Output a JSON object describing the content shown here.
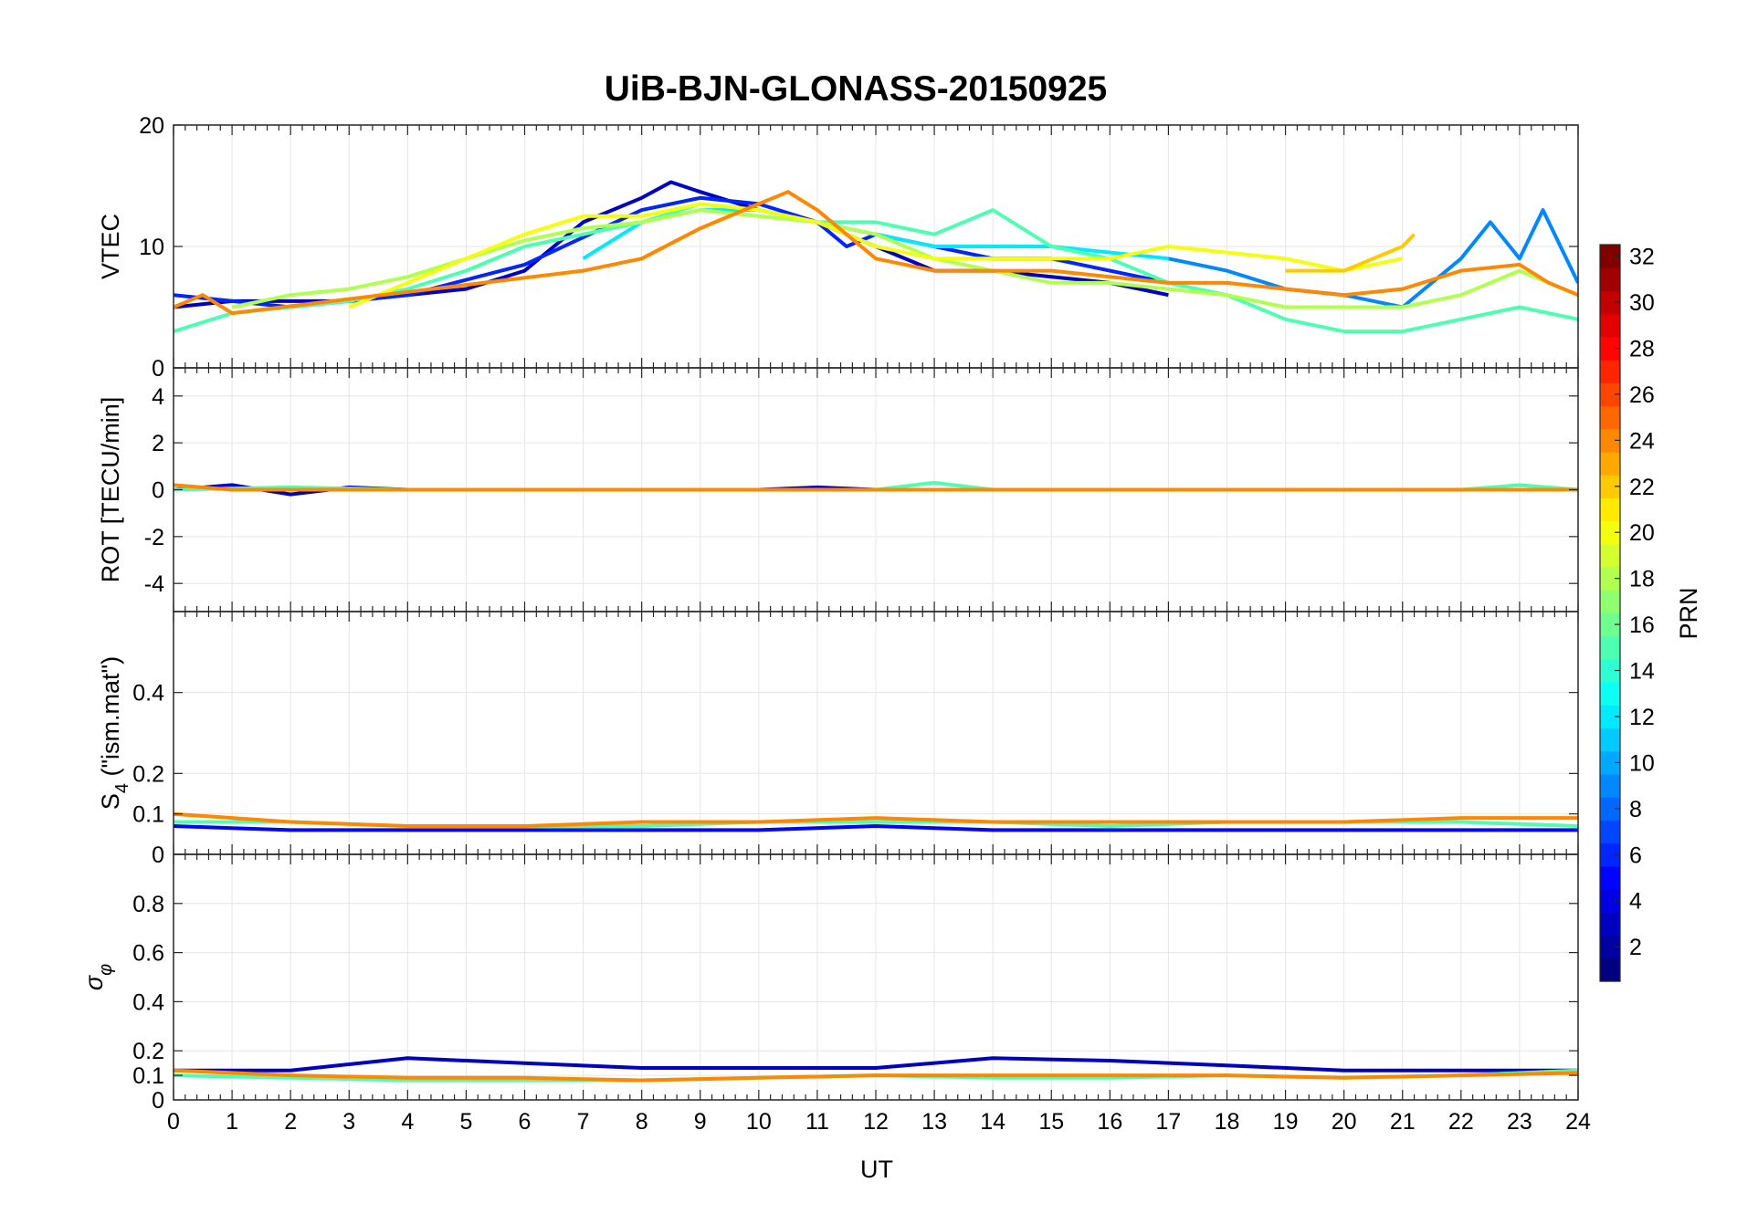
{
  "title": "UiB-BJN-GLONASS-20150925",
  "chart_data": {
    "type": "line",
    "title": "UiB-BJN-GLONASS-20150925",
    "xlabel": "UT",
    "xlim": [
      0,
      24
    ],
    "xticks": [
      0,
      1,
      2,
      3,
      4,
      5,
      6,
      7,
      8,
      9,
      10,
      11,
      12,
      13,
      14,
      15,
      16,
      17,
      18,
      19,
      20,
      21,
      22,
      23,
      24
    ],
    "grid": true,
    "colormap": "jet",
    "colorbar": {
      "label": "PRN",
      "range": [
        1,
        32
      ],
      "ticks": [
        2,
        4,
        6,
        8,
        10,
        12,
        14,
        16,
        18,
        20,
        22,
        24,
        26,
        28,
        30,
        32
      ],
      "placement": "right"
    },
    "panels": [
      {
        "id": "vtec",
        "ylabel": "VTEC",
        "ylim": [
          0,
          20
        ],
        "yticks": [
          0,
          10,
          20
        ],
        "series": [
          {
            "prn": 3,
            "x": [
              0,
              1,
              2,
              3,
              4,
              5,
              6,
              7,
              8,
              8.5,
              9,
              10,
              11,
              12,
              13,
              14,
              15,
              16,
              17
            ],
            "values": [
              5,
              5.5,
              5.5,
              5.5,
              6,
              6.5,
              8,
              12,
              14,
              15.3,
              14.5,
              13,
              12,
              10,
              8,
              8,
              7.5,
              7,
              6
            ]
          },
          {
            "prn": 6,
            "x": [
              0,
              2,
              4,
              6,
              8,
              9,
              10,
              11,
              11.5,
              12,
              13,
              14,
              15,
              16,
              17
            ],
            "values": [
              6,
              5,
              6,
              8.5,
              13,
              14,
              13.5,
              12,
              10,
              11,
              10,
              9,
              9,
              8,
              7
            ]
          },
          {
            "prn": 9,
            "x": [
              17,
              18,
              19,
              20,
              21,
              22,
              22.5,
              23,
              23.4,
              24
            ],
            "values": [
              9,
              8,
              6.5,
              6,
              5,
              9,
              12,
              9,
              13,
              7
            ]
          },
          {
            "prn": 12,
            "x": [
              7,
              8,
              9,
              10,
              11,
              13,
              14,
              15,
              16,
              17
            ],
            "values": [
              9,
              12,
              13,
              13,
              12,
              10,
              10,
              10,
              9.5,
              9
            ]
          },
          {
            "prn": 15,
            "x": [
              0,
              1,
              2,
              3,
              4,
              5,
              6,
              7,
              8,
              9,
              10,
              11,
              12,
              13,
              14,
              15,
              16,
              17,
              18,
              19,
              20,
              21,
              22,
              23,
              24
            ],
            "values": [
              3,
              4.5,
              5,
              5.5,
              6.5,
              8,
              10,
              11,
              12,
              13.5,
              13,
              12,
              12,
              11,
              13,
              10,
              9,
              7,
              6,
              4,
              3,
              3,
              4,
              5,
              4
            ]
          },
          {
            "prn": 18,
            "x": [
              1,
              2,
              3,
              4,
              5,
              6,
              7,
              8,
              9,
              10,
              11,
              12,
              13,
              14,
              15,
              16,
              17,
              18,
              19,
              20,
              21,
              22,
              23,
              24
            ],
            "values": [
              5,
              6,
              6.5,
              7.5,
              9,
              10.5,
              11.5,
              12,
              13,
              12.5,
              12,
              11,
              9,
              8,
              7,
              7,
              6.5,
              6,
              5,
              5,
              5,
              6,
              8,
              6
            ]
          },
          {
            "prn": 20,
            "x": [
              3,
              4,
              5,
              6,
              7,
              8,
              9,
              10,
              11,
              12,
              13,
              14,
              15,
              16,
              17,
              18,
              19,
              20,
              21
            ],
            "values": [
              5,
              7,
              9,
              11,
              12.5,
              12.5,
              13.5,
              13,
              12,
              10,
              9,
              9,
              9,
              9,
              10,
              9.5,
              9,
              8,
              9
            ]
          },
          {
            "prn": 22,
            "x": [
              19,
              20,
              20.5,
              21,
              21.2
            ],
            "values": [
              8,
              8,
              9,
              10,
              11
            ]
          },
          {
            "prn": 24,
            "x": [
              0,
              0.5,
              1,
              7,
              8,
              9,
              10,
              10.5,
              11,
              12,
              13,
              14,
              15,
              16,
              17,
              18,
              19,
              20,
              21,
              22,
              23,
              23.5,
              24
            ],
            "values": [
              5,
              6,
              4.5,
              8,
              9,
              11.5,
              13.5,
              14.5,
              13,
              9,
              8,
              8,
              8,
              7.5,
              7,
              7,
              6.5,
              6,
              6.5,
              8,
              8.5,
              7,
              6
            ]
          }
        ]
      },
      {
        "id": "rot",
        "ylabel": "ROT [TECU/min]",
        "ylim": [
          -5.2,
          5.2
        ],
        "yticks": [
          -4,
          -2,
          0,
          2,
          4
        ],
        "series": [
          {
            "prn": 3,
            "x": [
              0,
              1,
              2,
              3,
              4,
              5,
              6,
              7,
              8,
              9,
              10,
              11,
              12,
              13,
              14,
              15,
              16,
              17,
              18,
              19,
              20,
              21,
              22,
              23,
              24
            ],
            "values": [
              0,
              0.2,
              -0.2,
              0.1,
              0,
              0,
              0,
              0,
              0,
              0,
              0,
              0.1,
              0,
              0,
              0,
              0,
              0,
              0,
              0,
              0,
              0,
              0,
              0,
              0,
              0
            ]
          },
          {
            "prn": 15,
            "x": [
              0,
              2,
              4,
              6,
              8,
              10,
              12,
              13,
              14,
              16,
              18,
              20,
              22,
              23,
              24
            ],
            "values": [
              0,
              0.1,
              0,
              0,
              0,
              0,
              0,
              0.3,
              0,
              0,
              0,
              0,
              0,
              0.2,
              0
            ]
          },
          {
            "prn": 24,
            "x": [
              0,
              1,
              2,
              4,
              6,
              8,
              10,
              12,
              14,
              16,
              18,
              20,
              22,
              24
            ],
            "values": [
              0.2,
              0,
              0,
              0,
              0,
              0,
              0,
              0,
              0,
              0,
              0,
              0,
              0,
              0
            ]
          }
        ]
      },
      {
        "id": "s4",
        "ylabel": "S4 (\"ism.mat\")",
        "ylim": [
          0,
          0.6
        ],
        "yticks": [
          0,
          0.1,
          0.2,
          0.4
        ],
        "ylabel_main": "S",
        "ylabel_sub": "4",
        "ylabel_rest": " (\"ism.mat\")",
        "series": [
          {
            "prn": 5,
            "x": [
              0,
              2,
              4,
              6,
              8,
              10,
              12,
              14,
              16,
              18,
              20,
              22,
              24
            ],
            "values": [
              0.07,
              0.06,
              0.06,
              0.06,
              0.06,
              0.06,
              0.07,
              0.06,
              0.06,
              0.06,
              0.06,
              0.06,
              0.06
            ]
          },
          {
            "prn": 15,
            "x": [
              0,
              2,
              4,
              6,
              8,
              10,
              12,
              14,
              16,
              18,
              20,
              22,
              24
            ],
            "values": [
              0.08,
              0.08,
              0.07,
              0.07,
              0.07,
              0.08,
              0.08,
              0.08,
              0.07,
              0.08,
              0.08,
              0.08,
              0.07
            ]
          },
          {
            "prn": 24,
            "x": [
              0,
              2,
              4,
              6,
              8,
              10,
              12,
              14,
              16,
              18,
              20,
              22,
              24
            ],
            "values": [
              0.1,
              0.08,
              0.07,
              0.07,
              0.08,
              0.08,
              0.09,
              0.08,
              0.08,
              0.08,
              0.08,
              0.09,
              0.09
            ]
          }
        ]
      },
      {
        "id": "sigma",
        "ylabel": "σφ",
        "ylim": [
          0,
          1
        ],
        "yticks": [
          0,
          0.1,
          0.2,
          0.4,
          0.6,
          0.8
        ],
        "series": [
          {
            "prn": 3,
            "x": [
              0,
              2,
              4,
              6,
              8,
              10,
              12,
              14,
              16,
              18,
              20,
              22,
              24
            ],
            "values": [
              0.12,
              0.12,
              0.17,
              0.15,
              0.13,
              0.13,
              0.13,
              0.17,
              0.16,
              0.14,
              0.12,
              0.12,
              0.12
            ]
          },
          {
            "prn": 15,
            "x": [
              0,
              2,
              4,
              6,
              8,
              10,
              12,
              14,
              16,
              18,
              20,
              22,
              24
            ],
            "values": [
              0.1,
              0.09,
              0.08,
              0.08,
              0.08,
              0.09,
              0.1,
              0.09,
              0.09,
              0.1,
              0.09,
              0.1,
              0.12
            ]
          },
          {
            "prn": 24,
            "x": [
              0,
              2,
              4,
              6,
              8,
              10,
              12,
              14,
              16,
              18,
              20,
              22,
              24
            ],
            "values": [
              0.12,
              0.1,
              0.09,
              0.09,
              0.08,
              0.09,
              0.1,
              0.1,
              0.1,
              0.1,
              0.09,
              0.1,
              0.11
            ]
          }
        ]
      }
    ]
  }
}
